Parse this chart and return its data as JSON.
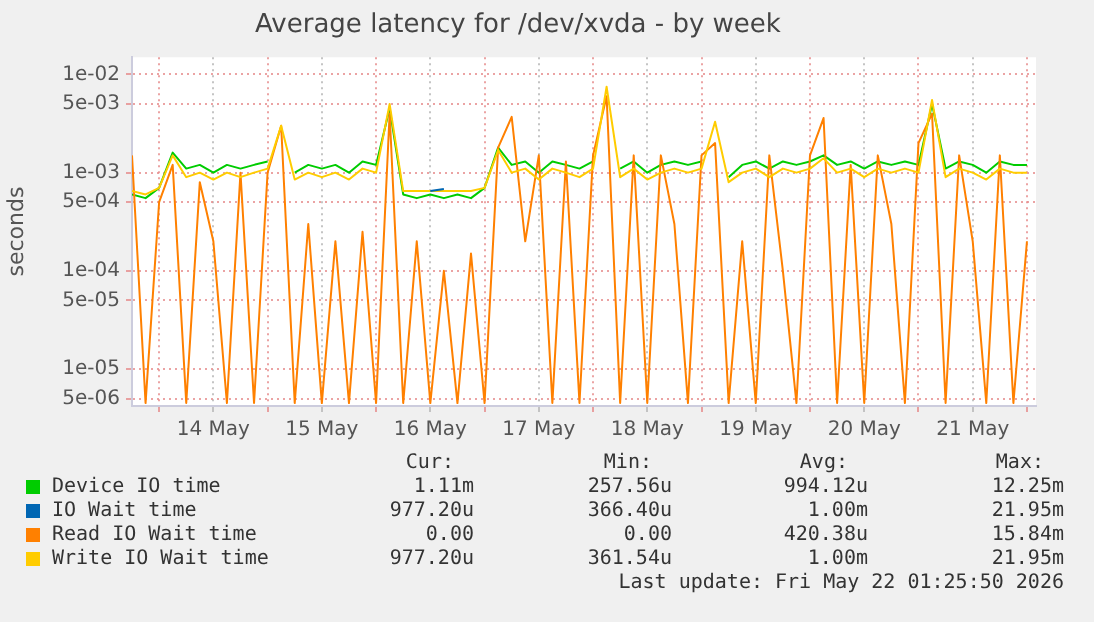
{
  "chart_data": {
    "type": "line",
    "title": "Average latency for /dev/xvda - by week",
    "ylabel": "seconds",
    "log": "y",
    "grid": true,
    "legend": "bottom",
    "marker": "none",
    "line_style": "solid",
    "xlim": [
      "2026-05-13T18:00",
      "2026-05-22T02:00"
    ],
    "xticks": [
      {
        "value": "2026-05-14T00:00",
        "label": null
      },
      {
        "value": "2026-05-14T12:00",
        "label": "14 May"
      },
      {
        "value": "2026-05-15T00:00",
        "label": null
      },
      {
        "value": "2026-05-15T12:00",
        "label": "15 May"
      },
      {
        "value": "2026-05-16T00:00",
        "label": null
      },
      {
        "value": "2026-05-16T12:00",
        "label": "16 May"
      },
      {
        "value": "2026-05-17T00:00",
        "label": null
      },
      {
        "value": "2026-05-17T12:00",
        "label": "17 May"
      },
      {
        "value": "2026-05-18T00:00",
        "label": null
      },
      {
        "value": "2026-05-18T12:00",
        "label": "18 May"
      },
      {
        "value": "2026-05-19T00:00",
        "label": null
      },
      {
        "value": "2026-05-19T12:00",
        "label": "19 May"
      },
      {
        "value": "2026-05-20T00:00",
        "label": null
      },
      {
        "value": "2026-05-20T12:00",
        "label": "20 May"
      },
      {
        "value": "2026-05-21T00:00",
        "label": null
      },
      {
        "value": "2026-05-21T12:00",
        "label": "21 May"
      },
      {
        "value": "2026-05-22T00:00",
        "label": null
      }
    ],
    "ylim": [
      4.2e-06,
      0.015
    ],
    "yticks": [
      {
        "value": 5e-06,
        "label": "5e-06"
      },
      {
        "value": 1e-05,
        "label": "1e-05"
      },
      {
        "value": 5e-05,
        "label": "5e-05"
      },
      {
        "value": 0.0001,
        "label": "1e-04"
      },
      {
        "value": 0.0005,
        "label": "5e-04"
      },
      {
        "value": 0.001,
        "label": "1e-03"
      },
      {
        "value": 0.005,
        "label": "5e-03"
      },
      {
        "value": 0.01,
        "label": "1e-02"
      }
    ],
    "x": [
      "2026-05-13T18:00",
      "2026-05-13T21:00",
      "2026-05-14T00:00",
      "2026-05-14T03:00",
      "2026-05-14T06:00",
      "2026-05-14T09:00",
      "2026-05-14T12:00",
      "2026-05-14T15:00",
      "2026-05-14T18:00",
      "2026-05-14T21:00",
      "2026-05-15T00:00",
      "2026-05-15T03:00",
      "2026-05-15T06:00",
      "2026-05-15T09:00",
      "2026-05-15T12:00",
      "2026-05-15T15:00",
      "2026-05-15T18:00",
      "2026-05-15T21:00",
      "2026-05-16T00:00",
      "2026-05-16T03:00",
      "2026-05-16T06:00",
      "2026-05-16T09:00",
      "2026-05-16T12:00",
      "2026-05-16T15:00",
      "2026-05-16T18:00",
      "2026-05-16T21:00",
      "2026-05-17T00:00",
      "2026-05-17T03:00",
      "2026-05-17T06:00",
      "2026-05-17T09:00",
      "2026-05-17T12:00",
      "2026-05-17T15:00",
      "2026-05-17T18:00",
      "2026-05-17T21:00",
      "2026-05-18T00:00",
      "2026-05-18T03:00",
      "2026-05-18T06:00",
      "2026-05-18T09:00",
      "2026-05-18T12:00",
      "2026-05-18T15:00",
      "2026-05-18T18:00",
      "2026-05-18T21:00",
      "2026-05-19T00:00",
      "2026-05-19T03:00",
      "2026-05-19T06:00",
      "2026-05-19T09:00",
      "2026-05-19T12:00",
      "2026-05-19T15:00",
      "2026-05-19T18:00",
      "2026-05-19T21:00",
      "2026-05-20T00:00",
      "2026-05-20T03:00",
      "2026-05-20T06:00",
      "2026-05-20T09:00",
      "2026-05-20T12:00",
      "2026-05-20T15:00",
      "2026-05-20T18:00",
      "2026-05-20T21:00",
      "2026-05-21T00:00",
      "2026-05-21T03:00",
      "2026-05-21T06:00",
      "2026-05-21T09:00",
      "2026-05-21T12:00",
      "2026-05-21T15:00",
      "2026-05-21T18:00",
      "2026-05-21T21:00",
      "2026-05-22T00:00"
    ],
    "series": [
      {
        "name": "Device IO time",
        "color": "#00cc00",
        "values": [
          0.0006,
          0.00055,
          0.0007,
          0.0016,
          0.0011,
          0.0012,
          0.001,
          0.0012,
          0.0011,
          0.0012,
          0.0013,
          null,
          0.001,
          0.0012,
          0.0011,
          0.0012,
          0.001,
          0.0013,
          0.0012,
          0.0045,
          0.0006,
          0.00055,
          0.0006,
          0.00055,
          0.0006,
          0.00055,
          0.0007,
          0.0018,
          0.0012,
          0.0013,
          0.001,
          0.0013,
          0.0012,
          0.0011,
          0.0013,
          null,
          0.0011,
          0.0013,
          0.001,
          0.0012,
          0.0013,
          0.0012,
          0.0013,
          null,
          0.0009,
          0.0012,
          0.0013,
          0.0011,
          0.0013,
          0.0012,
          0.0013,
          0.0015,
          0.0012,
          0.0013,
          0.0011,
          0.0013,
          0.0012,
          0.0013,
          0.0012,
          0.005,
          0.0011,
          0.0013,
          0.0012,
          0.001,
          0.0013,
          0.0012,
          0.0012
        ]
      },
      {
        "name": "IO Wait time",
        "color": "#0066b3",
        "x": [
          "2026-05-16T12:00",
          "2026-05-16T15:00"
        ],
        "values": [
          0.00065,
          0.00068
        ]
      },
      {
        "name": "Read IO Wait time",
        "color": "#ff8000",
        "values": [
          0.0015,
          4.5e-06,
          0.0005,
          0.0012,
          4.5e-06,
          0.0008,
          0.0002,
          4.5e-06,
          0.001,
          4.5e-06,
          0.001,
          0.003,
          4.5e-06,
          0.0003,
          4.5e-06,
          0.0002,
          4.5e-06,
          0.00025,
          4.5e-06,
          0.004,
          4.5e-06,
          0.0002,
          4.5e-06,
          0.0001,
          4.5e-06,
          0.00015,
          4.5e-06,
          0.0018,
          0.0037,
          0.0002,
          0.0015,
          4.5e-06,
          0.0013,
          4.5e-06,
          0.0015,
          0.006,
          4.5e-06,
          0.0015,
          4.5e-06,
          0.0015,
          0.0003,
          4.5e-06,
          0.0015,
          0.002,
          4.5e-06,
          0.0002,
          4.5e-06,
          0.0015,
          0.0001,
          4.5e-06,
          0.0015,
          0.0036,
          4.5e-06,
          0.0012,
          4.5e-06,
          0.0015,
          0.0003,
          4.5e-06,
          0.002,
          0.004,
          4.5e-06,
          0.0015,
          0.0002,
          4.5e-06,
          0.0015,
          4.5e-06,
          0.0002
        ]
      },
      {
        "name": "Write IO Wait time",
        "color": "#ffcc00",
        "values": [
          0.00065,
          0.0006,
          0.0007,
          0.0015,
          0.0009,
          0.001,
          0.00085,
          0.001,
          0.0009,
          0.001,
          0.0011,
          0.003,
          0.00085,
          0.001,
          0.0009,
          0.001,
          0.00085,
          0.0011,
          0.001,
          0.005,
          0.00065,
          0.00065,
          0.00065,
          0.00065,
          0.00065,
          0.00065,
          0.0007,
          0.0017,
          0.001,
          0.0011,
          0.00085,
          0.0011,
          0.001,
          0.0009,
          0.0011,
          0.0075,
          0.0009,
          0.0011,
          0.00085,
          0.001,
          0.0011,
          0.001,
          0.0011,
          0.0033,
          0.0008,
          0.001,
          0.0011,
          0.0009,
          0.0011,
          0.001,
          0.0011,
          0.0014,
          0.001,
          0.0011,
          0.0009,
          0.0011,
          0.001,
          0.0011,
          0.001,
          0.0055,
          0.0009,
          0.0011,
          0.001,
          0.00085,
          0.0011,
          0.001,
          0.001
        ]
      }
    ],
    "annotations": [
      "Cur:",
      "Min:",
      "Avg:",
      "Max:",
      "1.11m",
      "257.56u",
      "994.12u",
      "12.25m",
      "977.20u",
      "366.40u",
      "1.00m",
      "21.95m",
      "0.00",
      "0.00",
      "420.38u",
      "15.84m",
      "977.20u",
      "361.54u",
      "1.00m",
      "21.95m",
      "Last update: Fri May 22 01:25:50 2026"
    ]
  }
}
